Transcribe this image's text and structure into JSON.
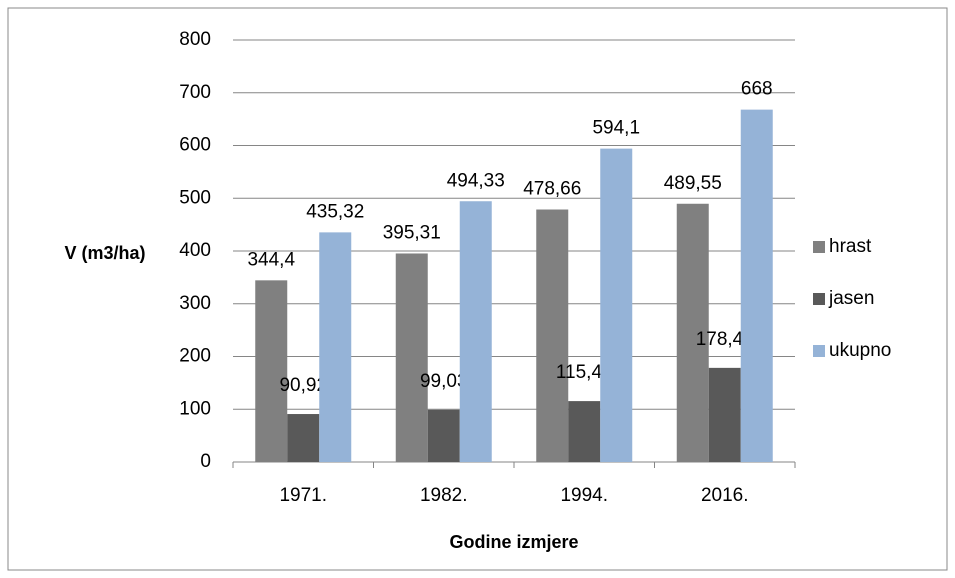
{
  "chart_data": {
    "type": "bar",
    "categories": [
      "1971.",
      "1982.",
      "1994.",
      "2016."
    ],
    "series": [
      {
        "name": "hrast",
        "color": "#808080",
        "values": [
          344.4,
          395.31,
          478.66,
          489.55
        ],
        "value_labels": [
          "344,4",
          "395,31",
          "478,66",
          "489,55"
        ]
      },
      {
        "name": "jasen",
        "color": "#595959",
        "values": [
          90.92,
          99.03,
          115.44,
          178.45
        ],
        "value_labels": [
          "90,92",
          "99,03",
          "115,44",
          "178,45"
        ]
      },
      {
        "name": "ukupno",
        "color": "#95b3d7",
        "values": [
          435.32,
          494.33,
          594.1,
          668
        ],
        "value_labels": [
          "435,32",
          "494,33",
          "594,1",
          "668"
        ]
      }
    ],
    "ylabel": "V (m3/ha)",
    "xlabel": "Godine izmjere",
    "ylim": [
      0,
      800
    ],
    "yticks": [
      0,
      100,
      200,
      300,
      400,
      500,
      600,
      700,
      800
    ],
    "grid": true,
    "legend": "right"
  }
}
